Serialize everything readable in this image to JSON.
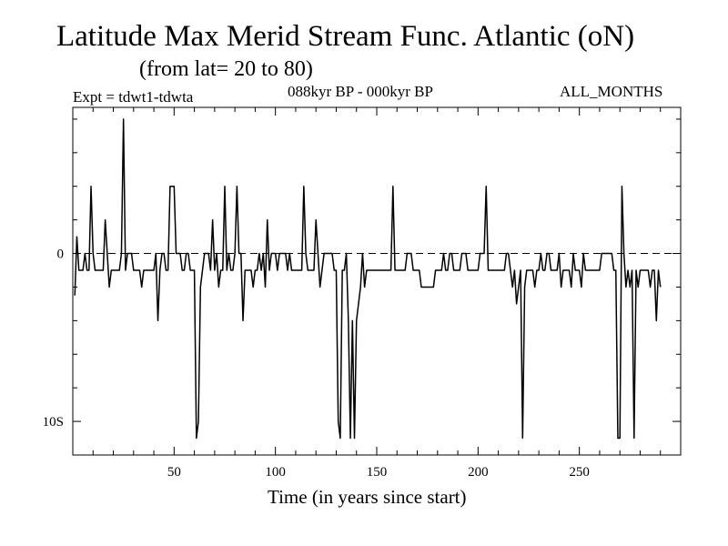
{
  "chart_data": {
    "type": "line",
    "title": "Latitude Max Merid Stream Func. Atlantic (oN)",
    "subtitle": "(from lat= 20 to 80)",
    "experiment": "Expt = tdwt1-tdwta",
    "period": "088kyr BP - 000kyr BP",
    "months": "ALL_MONTHS",
    "xlabel": "Time (in years since start)",
    "ylabel": "",
    "xlim": [
      0,
      300
    ],
    "ylim": [
      -12,
      8.7
    ],
    "x_ticks": [
      50,
      100,
      150,
      200,
      250
    ],
    "x_tick_labels": [
      "50",
      "100",
      "150",
      "200",
      "250"
    ],
    "y_ticks": [
      0,
      -10
    ],
    "y_tick_labels": [
      "0",
      "10S"
    ],
    "reference_line": 0,
    "series": [
      {
        "name": "latitude",
        "values": [
          -2.5,
          1,
          -1,
          -1,
          -1,
          0,
          -1,
          -1,
          4,
          0,
          -1,
          -1,
          -1,
          -1,
          -1,
          2,
          0,
          -2,
          -1,
          -1,
          -1,
          -1,
          -1,
          0,
          8,
          -1,
          0,
          0,
          0,
          -1,
          -1,
          -1,
          -1,
          -2,
          -1,
          -1,
          -1,
          -1,
          -1,
          -1,
          0,
          -4,
          -1,
          0,
          0,
          -1,
          -1,
          4,
          4,
          4,
          0,
          0,
          0,
          -1,
          -1,
          0,
          0,
          -1,
          -1,
          -1,
          -11,
          -10,
          -2,
          -1,
          0,
          0,
          0,
          -1,
          2,
          -1,
          0,
          -2,
          -1,
          -1,
          4,
          -1,
          0,
          -1,
          -1,
          0,
          4,
          0,
          0,
          -4,
          -1,
          -1,
          -1,
          -1,
          -2,
          -1,
          -1,
          0,
          -1,
          0,
          -2,
          2,
          -1,
          0,
          0,
          0,
          -1,
          0,
          0,
          0,
          0,
          -1,
          0,
          -1,
          -1,
          -1,
          -1,
          -1,
          -1,
          4,
          0,
          -1,
          -1,
          -1,
          -1,
          2,
          0,
          -2,
          -1,
          0,
          0,
          0,
          0,
          0,
          -1,
          -1,
          -10,
          -11,
          -1,
          -1,
          0,
          -4,
          -11,
          -4,
          -11,
          -4,
          -3,
          -2,
          0,
          -2,
          -1,
          -1,
          -1,
          -1,
          -1,
          -1,
          -1,
          -1,
          -1,
          -1,
          -1,
          -1,
          -1,
          4,
          -1,
          -1,
          -1,
          -1,
          -1,
          -1,
          0,
          0,
          0,
          -1,
          -1,
          -1,
          -1,
          -2,
          -2,
          -2,
          -2,
          -2,
          -2,
          -2,
          -1,
          -1,
          -1,
          -1,
          0,
          -1,
          -1,
          0,
          0,
          -1,
          -1,
          -1,
          -1,
          0,
          0,
          0,
          -1,
          -1,
          -1,
          -1,
          -1,
          -1,
          0,
          0,
          0,
          4,
          -1,
          -1,
          -1,
          -1,
          -1,
          -1,
          -1,
          -1,
          -1,
          0,
          0,
          -1,
          -2,
          -1,
          -3,
          -2,
          -1,
          -11,
          -2,
          -1,
          -1,
          -1,
          -1,
          -2,
          -1,
          -1,
          0,
          -1,
          -1,
          0,
          0,
          -1,
          -1,
          -1,
          -1,
          0,
          -2,
          -1,
          -1,
          -1,
          -1,
          -2,
          0,
          -1,
          -1,
          -1,
          -2,
          0,
          -1,
          -1,
          -1,
          -1,
          -1,
          -1,
          -1,
          -1,
          0,
          0,
          0,
          0,
          0,
          0,
          -1,
          -1,
          -11,
          -11,
          4,
          0,
          -2,
          -1,
          -2,
          -1,
          -11,
          -1,
          -2,
          -1,
          -1,
          -1,
          -1,
          -1,
          -2,
          -1,
          -1,
          -4,
          -1,
          -2
        ]
      }
    ]
  }
}
